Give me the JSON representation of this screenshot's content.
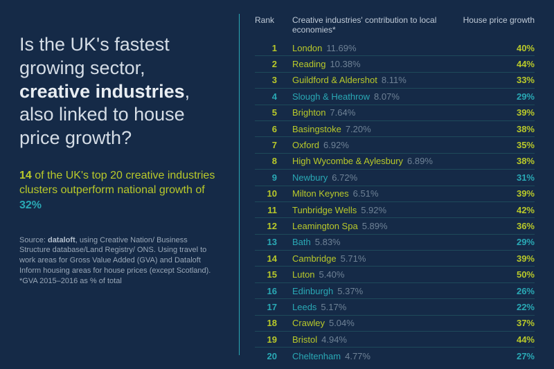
{
  "theme": {
    "background": "#152a47",
    "divider": "#2aa9b5",
    "row_border": "#1e4a5a",
    "text_light": "#d5dde6",
    "text_muted": "#9aa8b8",
    "text_header": "#c0cbd8",
    "yellow": "#b9c92a",
    "teal": "#2aa9b5",
    "grey": "#6f8296"
  },
  "headline": {
    "pre": "Is the UK's fastest growing sector, ",
    "bold": "creative industries",
    "post": ", also linked to house price growth?"
  },
  "subhead": {
    "num": "14",
    "text1": " of the UK's top 20 creative industries clusters outperform national growth of ",
    "pct": "32%"
  },
  "source": {
    "prefix": "Source: ",
    "brand": "dataloft",
    "rest": ", using Creative Nation/ Business Structure database/Land Registry/ ONS. Using travel to work areas for Gross Value Added (GVA) and Dataloft Inform housing areas for house prices (except Scotland). *GVA 2015–2016 as % of total"
  },
  "table": {
    "headers": {
      "rank": "Rank",
      "city": "Creative industries' contribution to local economies*",
      "growth": "House price growth"
    },
    "threshold": 32,
    "rows": [
      {
        "rank": 1,
        "city": "London",
        "contrib": "11.69%",
        "growth": 40
      },
      {
        "rank": 2,
        "city": "Reading",
        "contrib": "10.38%",
        "growth": 44
      },
      {
        "rank": 3,
        "city": "Guildford & Aldershot",
        "contrib": "8.11%",
        "growth": 33
      },
      {
        "rank": 4,
        "city": "Slough & Heathrow",
        "contrib": "8.07%",
        "growth": 29
      },
      {
        "rank": 5,
        "city": "Brighton",
        "contrib": "7.64%",
        "growth": 39
      },
      {
        "rank": 6,
        "city": "Basingstoke",
        "contrib": "7.20%",
        "growth": 38
      },
      {
        "rank": 7,
        "city": "Oxford",
        "contrib": "6.92%",
        "growth": 35
      },
      {
        "rank": 8,
        "city": "High Wycombe & Aylesbury",
        "contrib": "6.89%",
        "growth": 38
      },
      {
        "rank": 9,
        "city": "Newbury",
        "contrib": "6.72%",
        "growth": 31
      },
      {
        "rank": 10,
        "city": "Milton Keynes",
        "contrib": "6.51%",
        "growth": 39
      },
      {
        "rank": 11,
        "city": "Tunbridge Wells",
        "contrib": "5.92%",
        "growth": 42
      },
      {
        "rank": 12,
        "city": "Leamington Spa",
        "contrib": "5.89%",
        "growth": 36
      },
      {
        "rank": 13,
        "city": "Bath",
        "contrib": "5.83%",
        "growth": 29
      },
      {
        "rank": 14,
        "city": "Cambridge",
        "contrib": "5.71%",
        "growth": 39
      },
      {
        "rank": 15,
        "city": "Luton",
        "contrib": "5.40%",
        "growth": 50
      },
      {
        "rank": 16,
        "city": "Edinburgh",
        "contrib": "5.37%",
        "growth": 26
      },
      {
        "rank": 17,
        "city": "Leeds",
        "contrib": "5.17%",
        "growth": 22
      },
      {
        "rank": 18,
        "city": "Crawley",
        "contrib": "5.04%",
        "growth": 37
      },
      {
        "rank": 19,
        "city": "Bristol",
        "contrib": "4.94%",
        "growth": 44
      },
      {
        "rank": 20,
        "city": "Cheltenham",
        "contrib": "4.77%",
        "growth": 27
      }
    ]
  }
}
